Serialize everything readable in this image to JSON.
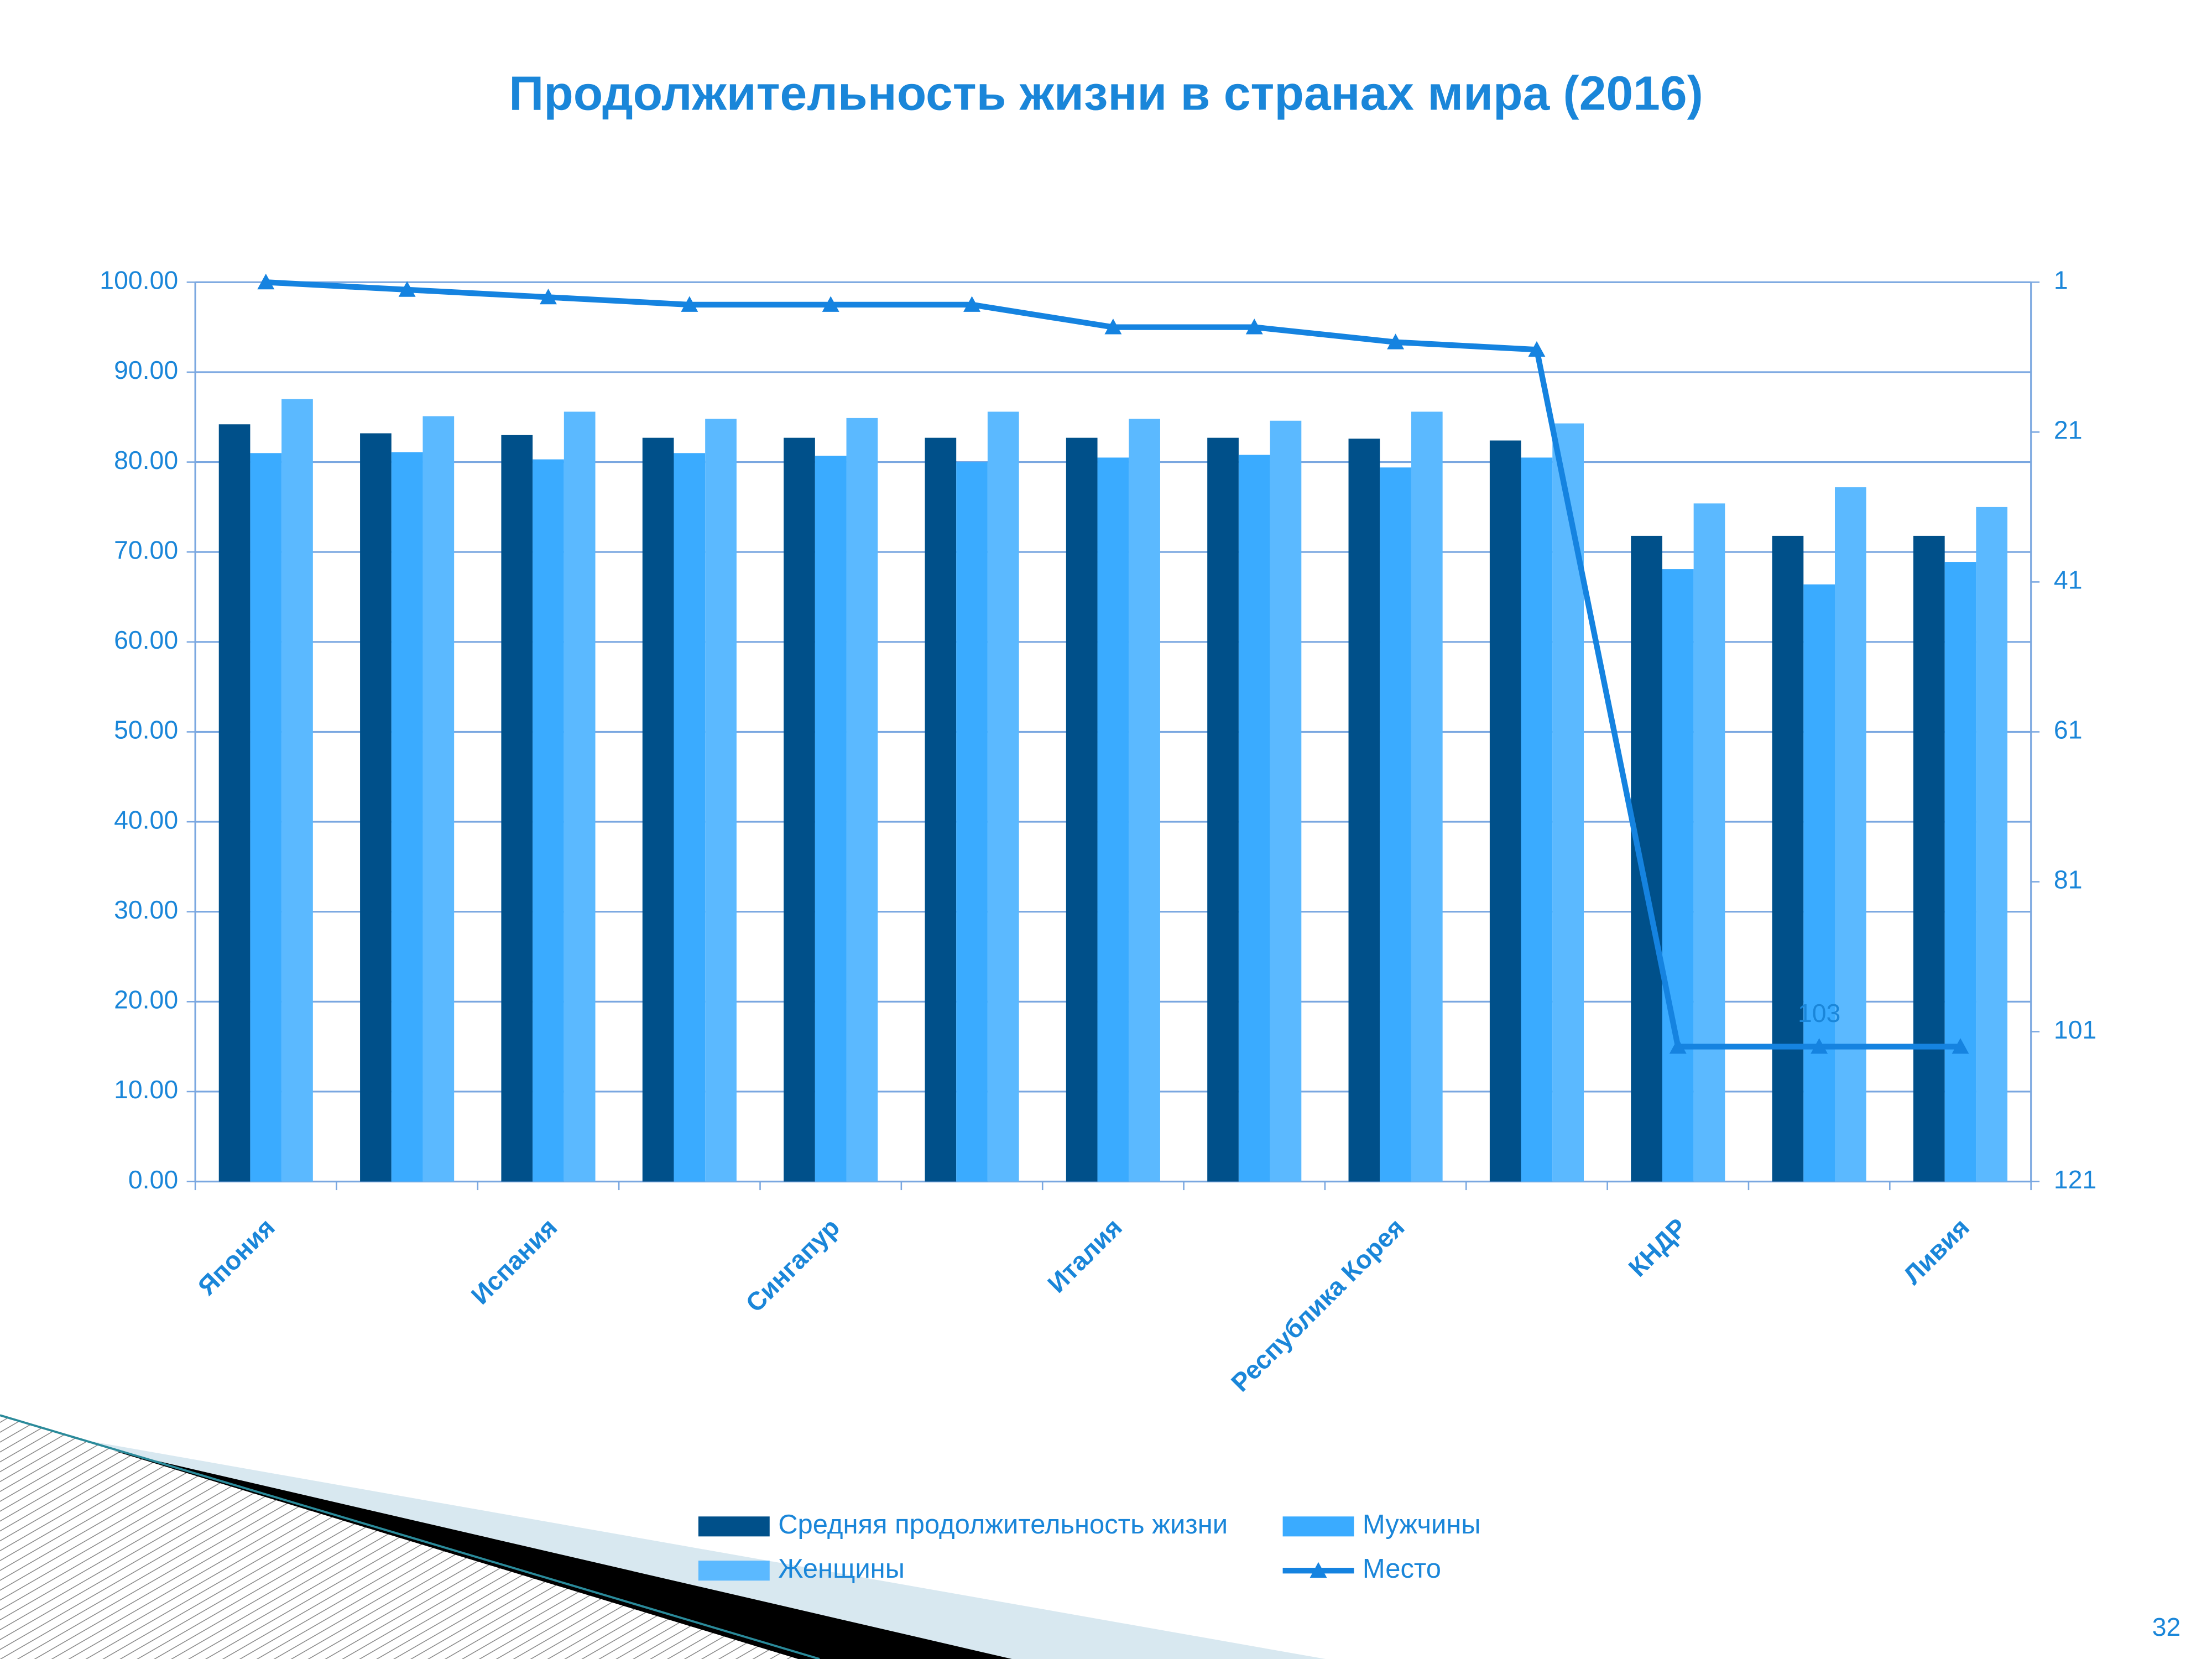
{
  "chart_data": {
    "type": "bar",
    "title": "Продолжительность жизни в странах мира (2016)",
    "categories": [
      "Япония",
      null,
      "Испания",
      null,
      "Сингапур",
      null,
      "Италия",
      null,
      "Республика Корея",
      null,
      "КНДР",
      null,
      "Ливия"
    ],
    "series": [
      {
        "name": "Средняя продолжительность жизни",
        "color": "#00508a",
        "type": "bar",
        "values": [
          84.2,
          83.2,
          83.0,
          82.7,
          82.7,
          82.7,
          82.7,
          82.7,
          82.6,
          82.4,
          71.8,
          71.8,
          71.8
        ]
      },
      {
        "name": "Мужчины",
        "color": "#3aabff",
        "type": "bar",
        "values": [
          81.0,
          81.1,
          80.3,
          81.0,
          80.7,
          80.0,
          80.5,
          80.8,
          79.4,
          80.5,
          68.1,
          66.4,
          68.9
        ]
      },
      {
        "name": "Женщины",
        "color": "#5bb9ff",
        "type": "bar",
        "values": [
          87.0,
          85.1,
          85.6,
          84.8,
          84.9,
          85.6,
          84.8,
          84.6,
          85.6,
          84.3,
          75.4,
          77.2,
          75.0
        ]
      },
      {
        "name": "Место",
        "color": "#1583e0",
        "type": "line",
        "axis": "y2",
        "values": [
          1,
          2,
          3,
          4,
          4,
          4,
          7,
          7,
          9,
          10,
          103,
          103,
          103
        ],
        "data_labels": [
          false,
          false,
          false,
          false,
          false,
          false,
          false,
          false,
          false,
          false,
          false,
          true,
          false
        ]
      }
    ],
    "ylim": [
      0,
      100
    ],
    "yticks": [
      {
        "value": 0,
        "label": "0.00"
      },
      {
        "value": 10,
        "label": "10.00"
      },
      {
        "value": 20,
        "label": "20.00"
      },
      {
        "value": 30,
        "label": "30.00"
      },
      {
        "value": 40,
        "label": "40.00"
      },
      {
        "value": 50,
        "label": "50.00"
      },
      {
        "value": 60,
        "label": "60.00"
      },
      {
        "value": 70,
        "label": "70.00"
      },
      {
        "value": 80,
        "label": "80.00"
      },
      {
        "value": 90,
        "label": "90.00"
      },
      {
        "value": 100,
        "label": "100.00"
      }
    ],
    "y2lim": [
      121,
      1
    ],
    "y2ticks": [
      1,
      21,
      41,
      61,
      81,
      101,
      121
    ],
    "grid": true,
    "legend": "bottom"
  },
  "page_number": "32"
}
